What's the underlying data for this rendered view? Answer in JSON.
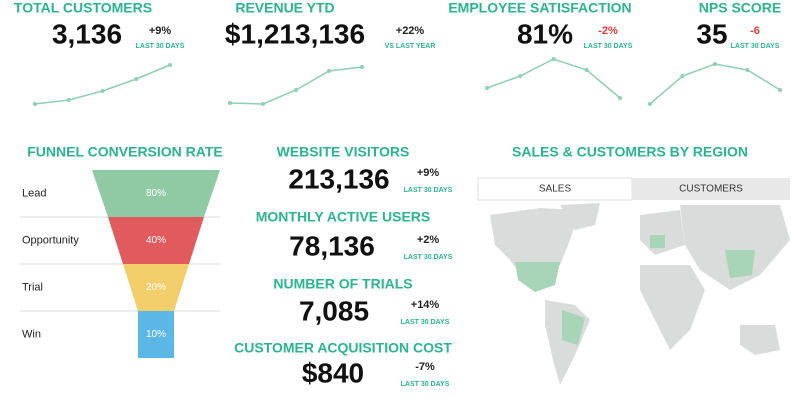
{
  "kpis": [
    {
      "title": "TOTAL CUSTOMERS",
      "value": "3,136",
      "change": "+9%",
      "change_color": "#222222",
      "period": "LAST 30 DAYS",
      "sparkline": {
        "values": [
          1,
          5,
          14,
          26,
          40
        ],
        "ylim": [
          0,
          50
        ]
      }
    },
    {
      "title": "REVENUE YTD",
      "value": "$1,213,136",
      "change": "+22%",
      "change_color": "#222222",
      "period": "VS LAST YEAR",
      "sparkline": {
        "values": [
          2,
          1,
          15,
          34,
          38
        ],
        "ylim": [
          0,
          50
        ]
      }
    },
    {
      "title": "EMPLOYEE SATISFACTION",
      "value": "81%",
      "change": "-2%",
      "change_color": "#e53935",
      "period": "LAST 30 DAYS",
      "sparkline": {
        "values": [
          17,
          29,
          46,
          35,
          7
        ],
        "ylim": [
          0,
          50
        ]
      }
    },
    {
      "title": "NPS SCORE",
      "value": "35",
      "change": "-6",
      "change_color": "#e53935",
      "period": "LAST 30 DAYS",
      "sparkline": {
        "values": [
          1,
          29,
          41,
          35,
          15
        ],
        "ylim": [
          0,
          50
        ]
      }
    }
  ],
  "funnel": {
    "title": "FUNNEL CONVERSION RATE",
    "stages": [
      {
        "name": "Lead",
        "value": 80,
        "label": "80%",
        "color": "#8fcaa5"
      },
      {
        "name": "Opportunity",
        "value": 40,
        "label": "40%",
        "color": "#e05a5e"
      },
      {
        "name": "Trial",
        "value": 20,
        "label": "20%",
        "color": "#f3cf6b"
      },
      {
        "name": "Win",
        "value": 10,
        "label": "10%",
        "color": "#5db7e6"
      }
    ]
  },
  "metrics": [
    {
      "title": "WEBSITE VISITORS",
      "value": "213,136",
      "change": "+9%",
      "period": "LAST 30 DAYS"
    },
    {
      "title": "MONTHLY ACTIVE USERS",
      "value": "78,136",
      "change": "+2%",
      "period": "LAST 30 DAYS"
    },
    {
      "title": "NUMBER OF TRIALS",
      "value": "7,085",
      "change": "+14%",
      "period": "LAST 30 DAYS"
    },
    {
      "title": "CUSTOMER ACQUISITION COST",
      "value": "$840",
      "change": "-7%",
      "period": "LAST 30 DAYS"
    }
  ],
  "map": {
    "title": "SALES & CUSTOMERS BY REGION",
    "tabs": [
      "SALES",
      "CUSTOMERS"
    ]
  }
}
